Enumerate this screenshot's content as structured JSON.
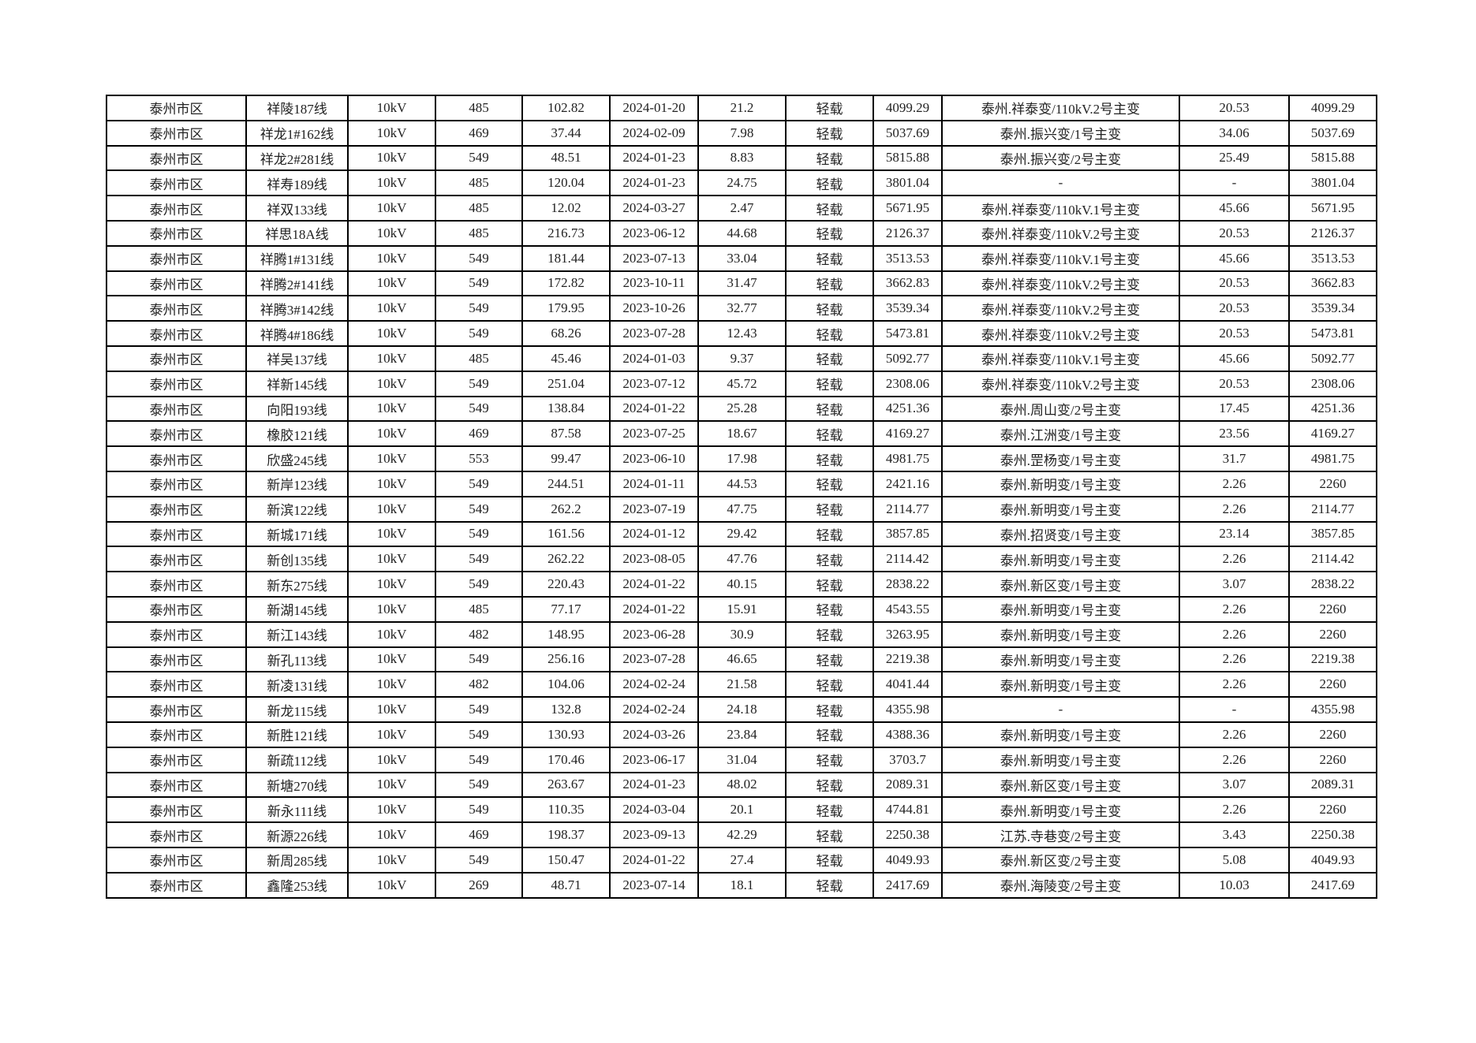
{
  "table": {
    "rows": [
      [
        "泰州市区",
        "祥陵187线",
        "10kV",
        "485",
        "102.82",
        "2024-01-20",
        "21.2",
        "轻载",
        "4099.29",
        "泰州.祥泰变/110kV.2号主变",
        "20.53",
        "4099.29"
      ],
      [
        "泰州市区",
        "祥龙1#162线",
        "10kV",
        "469",
        "37.44",
        "2024-02-09",
        "7.98",
        "轻载",
        "5037.69",
        "泰州.振兴变/1号主变",
        "34.06",
        "5037.69"
      ],
      [
        "泰州市区",
        "祥龙2#281线",
        "10kV",
        "549",
        "48.51",
        "2024-01-23",
        "8.83",
        "轻载",
        "5815.88",
        "泰州.振兴变/2号主变",
        "25.49",
        "5815.88"
      ],
      [
        "泰州市区",
        "祥寿189线",
        "10kV",
        "485",
        "120.04",
        "2024-01-23",
        "24.75",
        "轻载",
        "3801.04",
        "-",
        "-",
        "3801.04"
      ],
      [
        "泰州市区",
        "祥双133线",
        "10kV",
        "485",
        "12.02",
        "2024-03-27",
        "2.47",
        "轻载",
        "5671.95",
        "泰州.祥泰变/110kV.1号主变",
        "45.66",
        "5671.95"
      ],
      [
        "泰州市区",
        "祥思18A线",
        "10kV",
        "485",
        "216.73",
        "2023-06-12",
        "44.68",
        "轻载",
        "2126.37",
        "泰州.祥泰变/110kV.2号主变",
        "20.53",
        "2126.37"
      ],
      [
        "泰州市区",
        "祥腾1#131线",
        "10kV",
        "549",
        "181.44",
        "2023-07-13",
        "33.04",
        "轻载",
        "3513.53",
        "泰州.祥泰变/110kV.1号主变",
        "45.66",
        "3513.53"
      ],
      [
        "泰州市区",
        "祥腾2#141线",
        "10kV",
        "549",
        "172.82",
        "2023-10-11",
        "31.47",
        "轻载",
        "3662.83",
        "泰州.祥泰变/110kV.2号主变",
        "20.53",
        "3662.83"
      ],
      [
        "泰州市区",
        "祥腾3#142线",
        "10kV",
        "549",
        "179.95",
        "2023-10-26",
        "32.77",
        "轻载",
        "3539.34",
        "泰州.祥泰变/110kV.2号主变",
        "20.53",
        "3539.34"
      ],
      [
        "泰州市区",
        "祥腾4#186线",
        "10kV",
        "549",
        "68.26",
        "2023-07-28",
        "12.43",
        "轻载",
        "5473.81",
        "泰州.祥泰变/110kV.2号主变",
        "20.53",
        "5473.81"
      ],
      [
        "泰州市区",
        "祥吴137线",
        "10kV",
        "485",
        "45.46",
        "2024-01-03",
        "9.37",
        "轻载",
        "5092.77",
        "泰州.祥泰变/110kV.1号主变",
        "45.66",
        "5092.77"
      ],
      [
        "泰州市区",
        "祥新145线",
        "10kV",
        "549",
        "251.04",
        "2023-07-12",
        "45.72",
        "轻载",
        "2308.06",
        "泰州.祥泰变/110kV.2号主变",
        "20.53",
        "2308.06"
      ],
      [
        "泰州市区",
        "向阳193线",
        "10kV",
        "549",
        "138.84",
        "2024-01-22",
        "25.28",
        "轻载",
        "4251.36",
        "泰州.周山变/2号主变",
        "17.45",
        "4251.36"
      ],
      [
        "泰州市区",
        "橡胶121线",
        "10kV",
        "469",
        "87.58",
        "2023-07-25",
        "18.67",
        "轻载",
        "4169.27",
        "泰州.江洲变/1号主变",
        "23.56",
        "4169.27"
      ],
      [
        "泰州市区",
        "欣盛245线",
        "10kV",
        "553",
        "99.47",
        "2023-06-10",
        "17.98",
        "轻载",
        "4981.75",
        "泰州.罡杨变/1号主变",
        "31.7",
        "4981.75"
      ],
      [
        "泰州市区",
        "新岸123线",
        "10kV",
        "549",
        "244.51",
        "2024-01-11",
        "44.53",
        "轻载",
        "2421.16",
        "泰州.新明变/1号主变",
        "2.26",
        "2260"
      ],
      [
        "泰州市区",
        "新滨122线",
        "10kV",
        "549",
        "262.2",
        "2023-07-19",
        "47.75",
        "轻载",
        "2114.77",
        "泰州.新明变/1号主变",
        "2.26",
        "2114.77"
      ],
      [
        "泰州市区",
        "新城171线",
        "10kV",
        "549",
        "161.56",
        "2024-01-12",
        "29.42",
        "轻载",
        "3857.85",
        "泰州.招贤变/1号主变",
        "23.14",
        "3857.85"
      ],
      [
        "泰州市区",
        "新创135线",
        "10kV",
        "549",
        "262.22",
        "2023-08-05",
        "47.76",
        "轻载",
        "2114.42",
        "泰州.新明变/1号主变",
        "2.26",
        "2114.42"
      ],
      [
        "泰州市区",
        "新东275线",
        "10kV",
        "549",
        "220.43",
        "2024-01-22",
        "40.15",
        "轻载",
        "2838.22",
        "泰州.新区变/1号主变",
        "3.07",
        "2838.22"
      ],
      [
        "泰州市区",
        "新湖145线",
        "10kV",
        "485",
        "77.17",
        "2024-01-22",
        "15.91",
        "轻载",
        "4543.55",
        "泰州.新明变/1号主变",
        "2.26",
        "2260"
      ],
      [
        "泰州市区",
        "新江143线",
        "10kV",
        "482",
        "148.95",
        "2023-06-28",
        "30.9",
        "轻载",
        "3263.95",
        "泰州.新明变/1号主变",
        "2.26",
        "2260"
      ],
      [
        "泰州市区",
        "新孔113线",
        "10kV",
        "549",
        "256.16",
        "2023-07-28",
        "46.65",
        "轻载",
        "2219.38",
        "泰州.新明变/1号主变",
        "2.26",
        "2219.38"
      ],
      [
        "泰州市区",
        "新凌131线",
        "10kV",
        "482",
        "104.06",
        "2024-02-24",
        "21.58",
        "轻载",
        "4041.44",
        "泰州.新明变/1号主变",
        "2.26",
        "2260"
      ],
      [
        "泰州市区",
        "新龙115线",
        "10kV",
        "549",
        "132.8",
        "2024-02-24",
        "24.18",
        "轻载",
        "4355.98",
        "-",
        "-",
        "4355.98"
      ],
      [
        "泰州市区",
        "新胜121线",
        "10kV",
        "549",
        "130.93",
        "2024-03-26",
        "23.84",
        "轻载",
        "4388.36",
        "泰州.新明变/1号主变",
        "2.26",
        "2260"
      ],
      [
        "泰州市区",
        "新疏112线",
        "10kV",
        "549",
        "170.46",
        "2023-06-17",
        "31.04",
        "轻载",
        "3703.7",
        "泰州.新明变/1号主变",
        "2.26",
        "2260"
      ],
      [
        "泰州市区",
        "新塘270线",
        "10kV",
        "549",
        "263.67",
        "2024-01-23",
        "48.02",
        "轻载",
        "2089.31",
        "泰州.新区变/1号主变",
        "3.07",
        "2089.31"
      ],
      [
        "泰州市区",
        "新永111线",
        "10kV",
        "549",
        "110.35",
        "2024-03-04",
        "20.1",
        "轻载",
        "4744.81",
        "泰州.新明变/1号主变",
        "2.26",
        "2260"
      ],
      [
        "泰州市区",
        "新源226线",
        "10kV",
        "469",
        "198.37",
        "2023-09-13",
        "42.29",
        "轻载",
        "2250.38",
        "江苏.寺巷变/2号主变",
        "3.43",
        "2250.38"
      ],
      [
        "泰州市区",
        "新周285线",
        "10kV",
        "549",
        "150.47",
        "2024-01-22",
        "27.4",
        "轻载",
        "4049.93",
        "泰州.新区变/2号主变",
        "5.08",
        "4049.93"
      ],
      [
        "泰州市区",
        "鑫隆253线",
        "10kV",
        "269",
        "48.71",
        "2023-07-14",
        "18.1",
        "轻载",
        "2417.69",
        "泰州.海陵变/2号主变",
        "10.03",
        "2417.69"
      ]
    ]
  }
}
